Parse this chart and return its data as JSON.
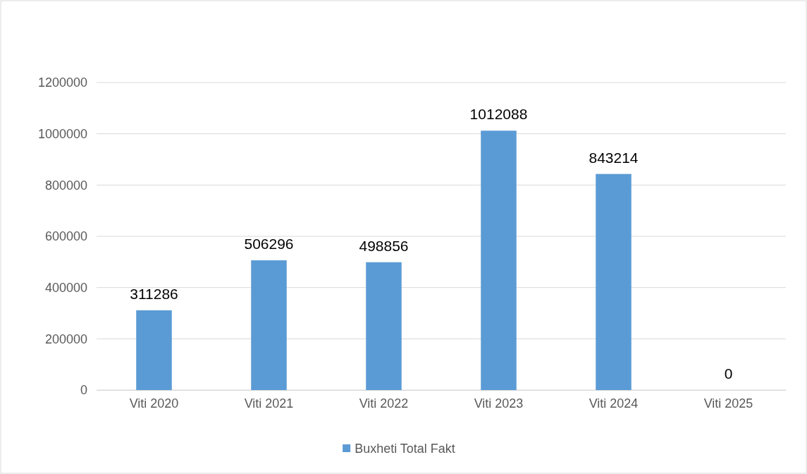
{
  "chart_data": {
    "type": "bar",
    "categories": [
      "Viti 2020",
      "Viti 2021",
      "Viti 2022",
      "Viti 2023",
      "Viti 2024",
      "Viti 2025"
    ],
    "series": [
      {
        "name": "Buxheti Total Fakt",
        "color": "#5b9bd5",
        "values": [
          311286,
          506296,
          498856,
          1012088,
          843214,
          0
        ]
      }
    ],
    "ylim": [
      0,
      1200000
    ],
    "yticks": [
      0,
      200000,
      400000,
      600000,
      800000,
      1000000,
      1200000
    ],
    "grid": "y",
    "legend": "bottom",
    "data_labels": true
  }
}
